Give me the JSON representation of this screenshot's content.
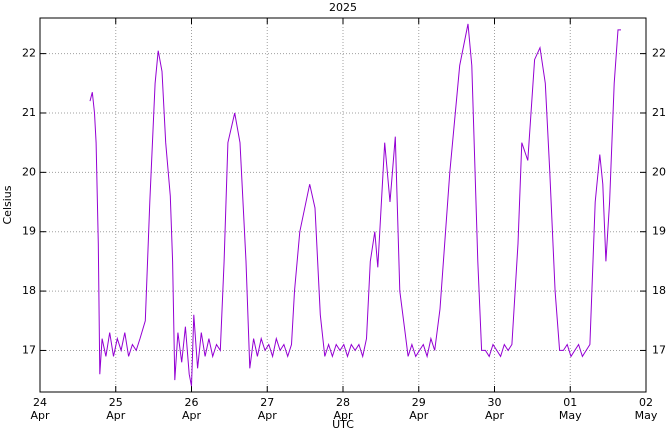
{
  "chart_data": {
    "type": "line",
    "title": "2025",
    "x_label": "UTC",
    "y_label": "Celsius",
    "xlim": [
      0,
      8
    ],
    "ylim": [
      16.3,
      22.6
    ],
    "xticks": [
      {
        "value": 0,
        "label": "24\nApr"
      },
      {
        "value": 1,
        "label": "25\nApr"
      },
      {
        "value": 2,
        "label": "26\nApr"
      },
      {
        "value": 3,
        "label": "27\nApr"
      },
      {
        "value": 4,
        "label": "28\nApr"
      },
      {
        "value": 5,
        "label": "29\nApr"
      },
      {
        "value": 6,
        "label": "30\nApr"
      },
      {
        "value": 7,
        "label": "01\nMay"
      },
      {
        "value": 8,
        "label": "02\nMay"
      }
    ],
    "yticks": [
      17,
      18,
      19,
      20,
      21,
      22
    ],
    "grid": true,
    "x": [
      0.66,
      0.69,
      0.72,
      0.74,
      0.77,
      0.79,
      0.82,
      0.87,
      0.92,
      0.97,
      1.02,
      1.07,
      1.12,
      1.17,
      1.22,
      1.27,
      1.32,
      1.39,
      1.45,
      1.52,
      1.56,
      1.61,
      1.66,
      1.72,
      1.75,
      1.78,
      1.82,
      1.87,
      1.92,
      1.97,
      2.0,
      2.03,
      2.08,
      2.13,
      2.18,
      2.23,
      2.28,
      2.33,
      2.38,
      2.43,
      2.48,
      2.57,
      2.64,
      2.72,
      2.77,
      2.82,
      2.87,
      2.92,
      2.97,
      3.02,
      3.07,
      3.12,
      3.17,
      3.22,
      3.27,
      3.32,
      3.36,
      3.43,
      3.56,
      3.63,
      3.7,
      3.76,
      3.81,
      3.86,
      3.91,
      3.96,
      4.01,
      4.06,
      4.11,
      4.16,
      4.21,
      4.26,
      4.31,
      4.36,
      4.42,
      4.46,
      4.55,
      4.62,
      4.69,
      4.75,
      4.82,
      4.86,
      4.91,
      4.96,
      5.01,
      5.06,
      5.11,
      5.16,
      5.21,
      5.28,
      5.41,
      5.54,
      5.65,
      5.7,
      5.78,
      5.83,
      5.88,
      5.93,
      5.98,
      6.03,
      6.08,
      6.13,
      6.18,
      6.23,
      6.31,
      6.36,
      6.44,
      6.53,
      6.6,
      6.67,
      6.73,
      6.8,
      6.86,
      6.91,
      6.96,
      7.01,
      7.06,
      7.11,
      7.16,
      7.21,
      7.26,
      7.33,
      7.39,
      7.43,
      7.47,
      7.52,
      7.58,
      7.63,
      7.67
    ],
    "series": [
      {
        "color": "#9400d3",
        "values": [
          21.2,
          21.35,
          21.0,
          20.5,
          18.8,
          16.6,
          17.2,
          16.9,
          17.3,
          16.9,
          17.2,
          17.0,
          17.3,
          16.9,
          17.1,
          17.0,
          17.2,
          17.5,
          19.5,
          21.5,
          22.05,
          21.7,
          20.5,
          19.6,
          18.5,
          16.5,
          17.3,
          16.8,
          17.4,
          16.6,
          16.4,
          17.6,
          16.7,
          17.3,
          16.9,
          17.2,
          16.9,
          17.1,
          17.0,
          18.5,
          20.5,
          21.0,
          20.5,
          18.5,
          16.7,
          17.2,
          16.9,
          17.2,
          17.0,
          17.1,
          16.9,
          17.2,
          17.0,
          17.1,
          16.9,
          17.1,
          18.0,
          19.0,
          19.8,
          19.4,
          17.6,
          16.9,
          17.1,
          16.9,
          17.1,
          17.0,
          17.1,
          16.9,
          17.1,
          17.0,
          17.1,
          16.9,
          17.2,
          18.5,
          19.0,
          18.4,
          20.5,
          19.5,
          20.6,
          18.0,
          17.3,
          16.9,
          17.1,
          16.9,
          17.0,
          17.1,
          16.9,
          17.2,
          17.0,
          17.7,
          20.0,
          21.8,
          22.5,
          21.8,
          18.5,
          17.0,
          17.0,
          16.9,
          17.1,
          17.0,
          16.9,
          17.1,
          17.0,
          17.1,
          18.8,
          20.5,
          20.2,
          21.9,
          22.1,
          21.5,
          20.0,
          18.0,
          17.0,
          17.0,
          17.1,
          16.9,
          17.0,
          17.1,
          16.9,
          17.0,
          17.1,
          19.5,
          20.3,
          19.8,
          18.5,
          19.5,
          21.5,
          22.4,
          22.4
        ]
      }
    ]
  }
}
